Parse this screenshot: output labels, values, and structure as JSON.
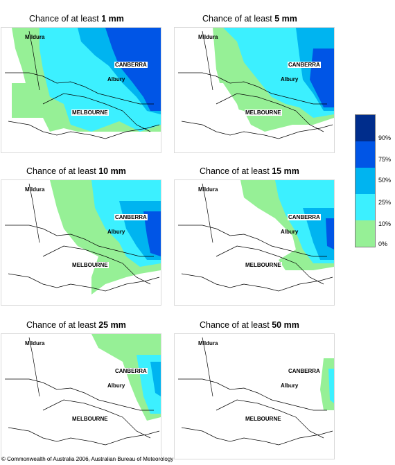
{
  "panels": [
    {
      "title_prefix": "Chance of at least ",
      "amount": "1 mm"
    },
    {
      "title_prefix": "Chance of at least ",
      "amount": "5 mm"
    },
    {
      "title_prefix": "Chance of at least ",
      "amount": "10 mm"
    },
    {
      "title_prefix": "Chance of at least ",
      "amount": "15 mm"
    },
    {
      "title_prefix": "Chance of at least ",
      "amount": "25 mm"
    },
    {
      "title_prefix": "Chance of at least ",
      "amount": "50 mm"
    }
  ],
  "cities": {
    "mildura": "Mildura",
    "canberra": "CANBERRA",
    "albury": "Albury",
    "melbourne": "MELBOURNE"
  },
  "legend": {
    "labels": [
      "90%",
      "75%",
      "50%",
      "25%",
      "10%",
      "0%"
    ],
    "colors": [
      "#002d8c",
      "#0055e6",
      "#00b4f0",
      "#3cf0ff",
      "#96f096",
      "#ffffff"
    ]
  },
  "copyright": "© Commonwealth of Australia 2006, Australian Bureau of Meteorology"
}
